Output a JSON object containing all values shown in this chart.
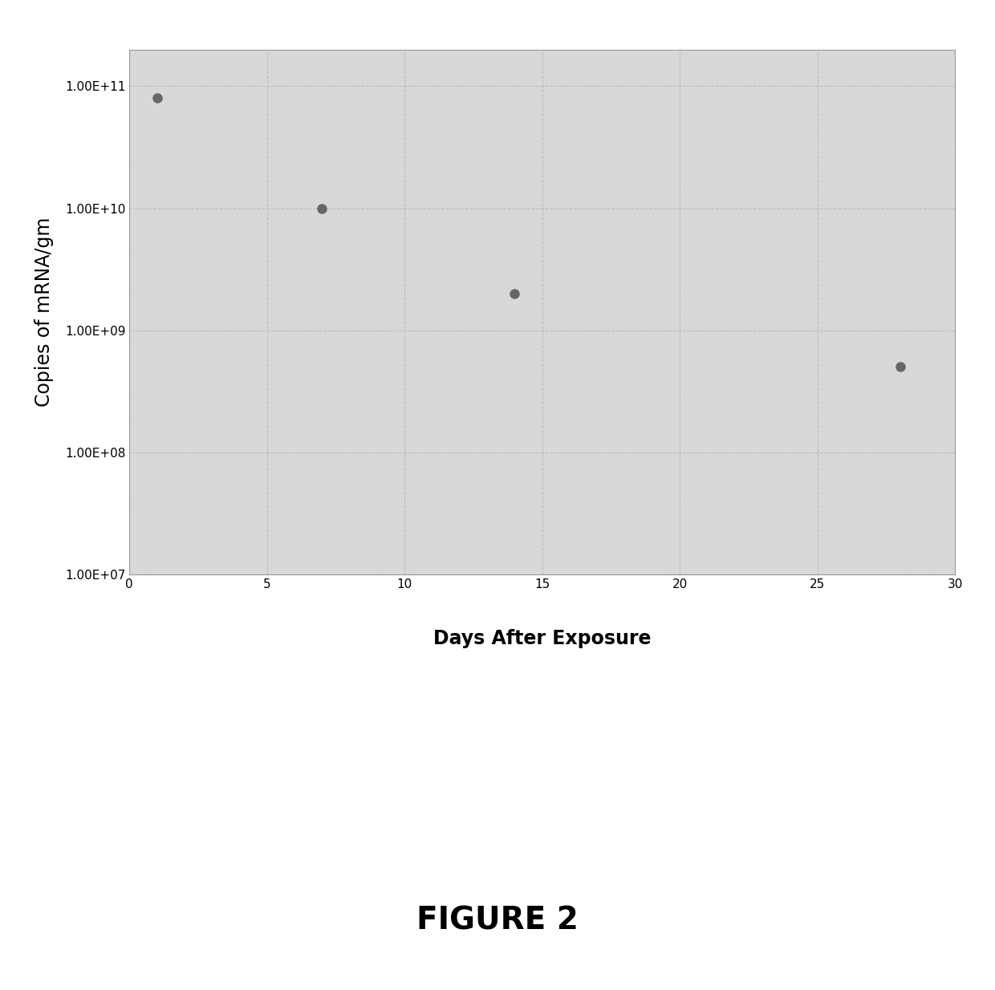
{
  "x_values": [
    1,
    7,
    14,
    28
  ],
  "y_values": [
    80000000000.0,
    10000000000.0,
    2000000000.0,
    500000000.0
  ],
  "xlabel": "Days After Exposure",
  "ylabel": "Copies of mRNA/gm",
  "figure_label": "FIGURE 2",
  "xlim": [
    0,
    30
  ],
  "ylim": [
    10000000.0,
    200000000000.0
  ],
  "xticks": [
    0,
    5,
    10,
    15,
    20,
    25,
    30
  ],
  "yticks": [
    10000000.0,
    100000000.0,
    1000000000.0,
    10000000000.0,
    100000000000.0
  ],
  "ytick_labels": [
    "1.00E+07",
    "1.00E+08",
    "1.00E+09",
    "1.00E+10",
    "1.00E+11"
  ],
  "marker_color": "#666666",
  "marker_size": 8,
  "plot_bg_color": "#d8d8d8",
  "fig_bg_color": "#ffffff",
  "grid_color": "#bbbbbb",
  "axis_label_fontsize": 17,
  "tick_fontsize": 11,
  "figure_label_fontsize": 28,
  "xlabel_fontsize": 17
}
